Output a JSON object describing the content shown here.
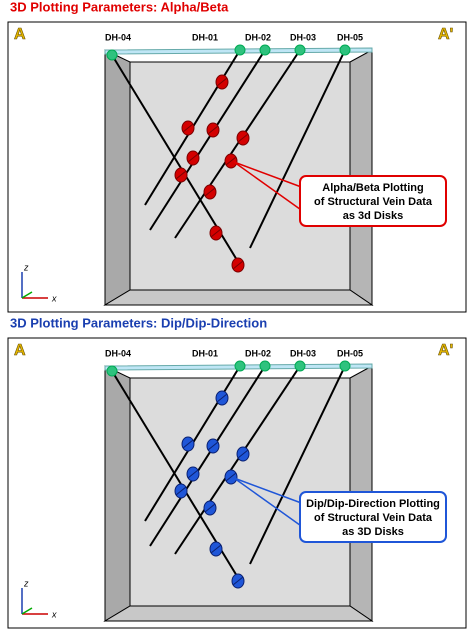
{
  "panels": [
    {
      "title": "3D Plotting Parameters: Alpha/Beta",
      "section_start": "A",
      "section_end": "A'",
      "holes": [
        "DH-04",
        "DH-01",
        "DH-02",
        "DH-03",
        "DH-05"
      ],
      "axes": {
        "z": "z",
        "x": "x"
      },
      "callout": [
        "Alpha/Beta Plotting",
        "of Structural Vein Data",
        "as 3d Disks"
      ]
    },
    {
      "title": "3D Plotting Parameters: Dip/Dip-Direction",
      "section_start": "A",
      "section_end": "A'",
      "holes": [
        "DH-04",
        "DH-01",
        "DH-02",
        "DH-03",
        "DH-05"
      ],
      "axes": {
        "z": "z",
        "x": "x"
      },
      "callout": [
        "Dip/Dip-Direction Plotting",
        "of Structural Vein Data",
        "as 3D Disks"
      ]
    }
  ]
}
